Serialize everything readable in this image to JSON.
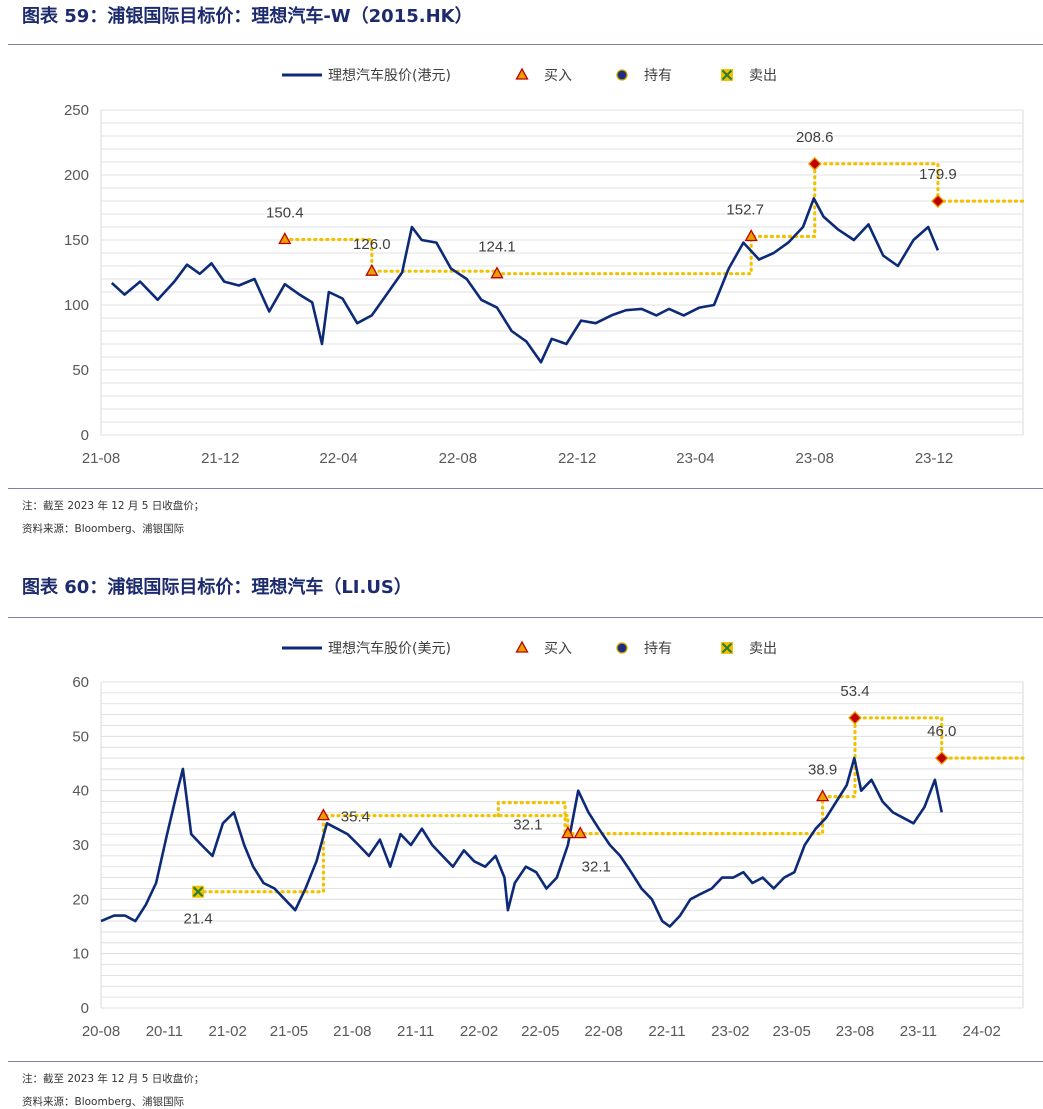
{
  "figure1": {
    "title": "图表 59：浦银国际目标价：理想汽车-W（2015.HK）",
    "note": "注：截至 2023 年 12 月 5 日收盘价；",
    "source": "资料来源：Bloomberg、浦银国际",
    "chart_data": {
      "type": "line",
      "legend": [
        "理想汽车股价(港元)",
        "买入",
        "持有",
        "卖出"
      ],
      "legend_position": "top",
      "grid": true,
      "ylim": [
        0,
        250
      ],
      "yticks": [
        0,
        50,
        100,
        150,
        200,
        250
      ],
      "xlim": [
        "2021-08",
        "2024-03"
      ],
      "xticks": [
        "21-08",
        "21-12",
        "22-04",
        "22-08",
        "22-12",
        "23-04",
        "23-08",
        "23-12"
      ],
      "price_series": {
        "name": "理想汽车股价(港元)",
        "x": [
          "2021-08-12",
          "2021-08-25",
          "2021-09-10",
          "2021-09-28",
          "2021-10-15",
          "2021-10-28",
          "2021-11-10",
          "2021-11-22",
          "2021-12-05",
          "2021-12-20",
          "2022-01-05",
          "2022-01-20",
          "2022-02-05",
          "2022-02-20",
          "2022-03-05",
          "2022-03-15",
          "2022-03-22",
          "2022-04-05",
          "2022-04-20",
          "2022-05-05",
          "2022-05-20",
          "2022-06-05",
          "2022-06-15",
          "2022-06-25",
          "2022-07-10",
          "2022-07-25",
          "2022-08-10",
          "2022-08-25",
          "2022-09-10",
          "2022-09-25",
          "2022-10-10",
          "2022-10-25",
          "2022-11-05",
          "2022-11-20",
          "2022-12-05",
          "2022-12-20",
          "2023-01-05",
          "2023-01-20",
          "2023-02-05",
          "2023-02-20",
          "2023-03-05",
          "2023-03-20",
          "2023-04-05",
          "2023-04-20",
          "2023-05-05",
          "2023-05-20",
          "2023-06-05",
          "2023-06-20",
          "2023-07-05",
          "2023-07-20",
          "2023-07-31",
          "2023-08-10",
          "2023-08-25",
          "2023-09-10",
          "2023-09-25",
          "2023-10-10",
          "2023-10-25",
          "2023-11-10",
          "2023-11-25",
          "2023-12-05"
        ],
        "values": [
          117,
          108,
          118,
          104,
          118,
          131,
          124,
          132,
          118,
          115,
          120,
          95,
          116,
          108,
          102,
          70,
          110,
          105,
          86,
          92,
          108,
          125,
          160,
          150,
          148,
          128,
          120,
          104,
          98,
          80,
          72,
          56,
          74,
          70,
          88,
          86,
          92,
          96,
          97,
          92,
          97,
          92,
          98,
          100,
          128,
          148,
          135,
          140,
          148,
          160,
          182,
          168,
          158,
          150,
          162,
          138,
          130,
          150,
          160,
          142
        ]
      },
      "target_prices": [
        {
          "date": "2022-02-05",
          "value": 150.4,
          "rating": "买入",
          "label": "150.4"
        },
        {
          "date": "2022-05-05",
          "value": 126.0,
          "rating": "买入",
          "label": "126.0"
        },
        {
          "date": "2022-09-10",
          "value": 124.1,
          "rating": "买入",
          "label": "124.1"
        },
        {
          "date": "2023-05-28",
          "value": 152.7,
          "rating": "买入",
          "label": "152.7"
        },
        {
          "date": "2023-08-01",
          "value": 208.6,
          "rating": "买入",
          "label": "208.6"
        },
        {
          "date": "2023-12-05",
          "value": 179.9,
          "rating": "买入",
          "label": "179.9"
        }
      ]
    }
  },
  "figure2": {
    "title": "图表 60：浦银国际目标价：理想汽车（LI.US）",
    "note": "注：截至 2023 年 12 月 5 日收盘价；",
    "source": "资料来源：Bloomberg、浦银国际",
    "chart_data": {
      "type": "line",
      "legend": [
        "理想汽车股价(美元)",
        "买入",
        "持有",
        "卖出"
      ],
      "legend_position": "top",
      "grid": true,
      "ylim": [
        0,
        60
      ],
      "yticks": [
        0,
        10,
        20,
        30,
        40,
        50,
        60
      ],
      "xlim": [
        "2020-08",
        "2024-04"
      ],
      "xticks": [
        "20-08",
        "20-11",
        "21-02",
        "21-05",
        "21-08",
        "21-11",
        "22-02",
        "22-05",
        "22-08",
        "22-11",
        "23-02",
        "23-05",
        "23-08",
        "23-11",
        "24-02"
      ],
      "price_series": {
        "name": "理想汽车股价(美元)",
        "x": [
          "2020-08-01",
          "2020-08-20",
          "2020-09-05",
          "2020-09-20",
          "2020-10-05",
          "2020-10-20",
          "2020-11-05",
          "2020-11-20",
          "2020-11-28",
          "2020-12-10",
          "2020-12-25",
          "2021-01-10",
          "2021-01-25",
          "2021-02-10",
          "2021-02-25",
          "2021-03-10",
          "2021-03-25",
          "2021-04-10",
          "2021-04-25",
          "2021-05-10",
          "2021-05-25",
          "2021-06-10",
          "2021-06-25",
          "2021-07-10",
          "2021-07-25",
          "2021-08-10",
          "2021-08-25",
          "2021-09-10",
          "2021-09-25",
          "2021-10-10",
          "2021-10-25",
          "2021-11-10",
          "2021-11-25",
          "2021-12-10",
          "2021-12-25",
          "2022-01-10",
          "2022-01-25",
          "2022-02-10",
          "2022-02-25",
          "2022-03-10",
          "2022-03-15",
          "2022-03-25",
          "2022-04-10",
          "2022-04-25",
          "2022-05-10",
          "2022-05-25",
          "2022-06-10",
          "2022-06-25",
          "2022-07-10",
          "2022-07-25",
          "2022-08-10",
          "2022-08-25",
          "2022-09-10",
          "2022-09-25",
          "2022-10-10",
          "2022-10-25",
          "2022-11-05",
          "2022-11-20",
          "2022-12-05",
          "2022-12-20",
          "2023-01-05",
          "2023-01-20",
          "2023-02-05",
          "2023-02-20",
          "2023-03-05",
          "2023-03-20",
          "2023-04-05",
          "2023-04-20",
          "2023-05-05",
          "2023-05-20",
          "2023-06-05",
          "2023-06-20",
          "2023-07-05",
          "2023-07-20",
          "2023-07-31",
          "2023-08-10",
          "2023-08-25",
          "2023-09-10",
          "2023-09-25",
          "2023-10-10",
          "2023-10-25",
          "2023-11-10",
          "2023-11-25",
          "2023-12-05"
        ],
        "values": [
          16,
          17,
          17,
          16,
          19,
          23,
          32,
          40,
          44,
          32,
          30,
          28,
          34,
          36,
          30,
          26,
          23,
          22,
          20,
          18,
          22,
          27,
          34,
          33,
          32,
          30,
          28,
          31,
          26,
          32,
          30,
          33,
          30,
          28,
          26,
          29,
          27,
          26,
          28,
          24,
          18,
          23,
          26,
          25,
          22,
          24,
          30,
          40,
          36,
          33,
          30,
          28,
          25,
          22,
          20,
          16,
          15,
          17,
          20,
          21,
          22,
          24,
          24,
          25,
          23,
          24,
          22,
          24,
          25,
          30,
          33,
          35,
          38,
          41,
          46,
          40,
          42,
          38,
          36,
          35,
          34,
          37,
          42,
          36
        ]
      },
      "target_prices": [
        {
          "date": "2020-12-20",
          "value": 21.4,
          "rating": "卖出",
          "label": "21.4"
        },
        {
          "date": "2021-06-20",
          "value": 35.4,
          "rating": "买入",
          "label": "35.4"
        },
        {
          "date": "2022-06-10",
          "value": 32.1,
          "rating": "买入",
          "label": "32.1"
        },
        {
          "date": "2022-06-28",
          "value": 32.1,
          "rating": "买入",
          "label": "32.1"
        },
        {
          "date": "2023-06-15",
          "value": 38.9,
          "rating": "买入",
          "label": "38.9"
        },
        {
          "date": "2023-08-01",
          "value": 53.4,
          "rating": "买入",
          "label": "53.4"
        },
        {
          "date": "2023-12-05",
          "value": 46.0,
          "rating": "买入",
          "label": "46.0"
        }
      ],
      "note_step_prices": [
        37.8
      ]
    }
  },
  "colors": {
    "line": "#0d2a78",
    "target": "#f2c200",
    "buy_fill": "#e8a000",
    "buy_edge": "#c00000",
    "hold_fill": "#1a2f7d",
    "hold_edge": "#d4a500",
    "sell_fill": "#2e7d32",
    "sell_edge": "#f2c200",
    "grid": "#d9d9d9",
    "axis_text": "#595959"
  }
}
